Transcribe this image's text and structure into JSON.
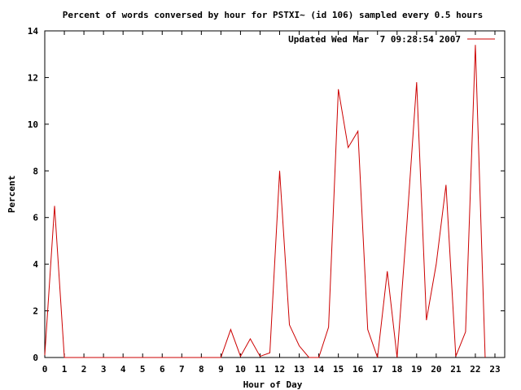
{
  "chart_data": {
    "type": "line",
    "title": "Percent of words conversed by hour for PSTXI~ (id 106) sampled every 0.5 hours",
    "xlabel": "Hour of Day",
    "ylabel": "Percent",
    "xlim": [
      0,
      23.5
    ],
    "ylim": [
      0,
      14
    ],
    "xticks": [
      0,
      1,
      2,
      3,
      4,
      5,
      6,
      7,
      8,
      9,
      10,
      11,
      12,
      13,
      14,
      15,
      16,
      17,
      18,
      19,
      20,
      21,
      22,
      23
    ],
    "yticks": [
      0,
      2,
      4,
      6,
      8,
      10,
      12,
      14
    ],
    "legend_position": "top-right",
    "grid": false,
    "series": [
      {
        "name": "Updated Wed Mar  7 09:28:54 2007",
        "color": "#cc0000",
        "x": [
          0,
          0.5,
          1,
          1.5,
          2,
          2.5,
          3,
          3.5,
          4,
          4.5,
          5,
          5.5,
          6,
          6.5,
          7,
          7.5,
          8,
          8.5,
          9,
          9.5,
          10,
          10.5,
          11,
          11.5,
          12,
          12.5,
          13,
          13.5,
          14,
          14.5,
          15,
          15.5,
          16,
          16.5,
          17,
          17.5,
          18,
          18.5,
          19,
          19.5,
          20,
          20.5,
          21,
          21.5,
          22,
          22.5
        ],
        "values": [
          0.1,
          6.5,
          0,
          0,
          0,
          0,
          0,
          0,
          0,
          0,
          0,
          0,
          0,
          0,
          0,
          0,
          0,
          0,
          0,
          1.2,
          0.05,
          0.8,
          0.05,
          0.2,
          8.0,
          1.4,
          0.5,
          0,
          0,
          1.3,
          11.5,
          9.0,
          9.7,
          1.2,
          0,
          3.7,
          0,
          5.7,
          11.8,
          1.6,
          4.0,
          7.4,
          0.05,
          1.1,
          13.4,
          0
        ]
      }
    ]
  }
}
